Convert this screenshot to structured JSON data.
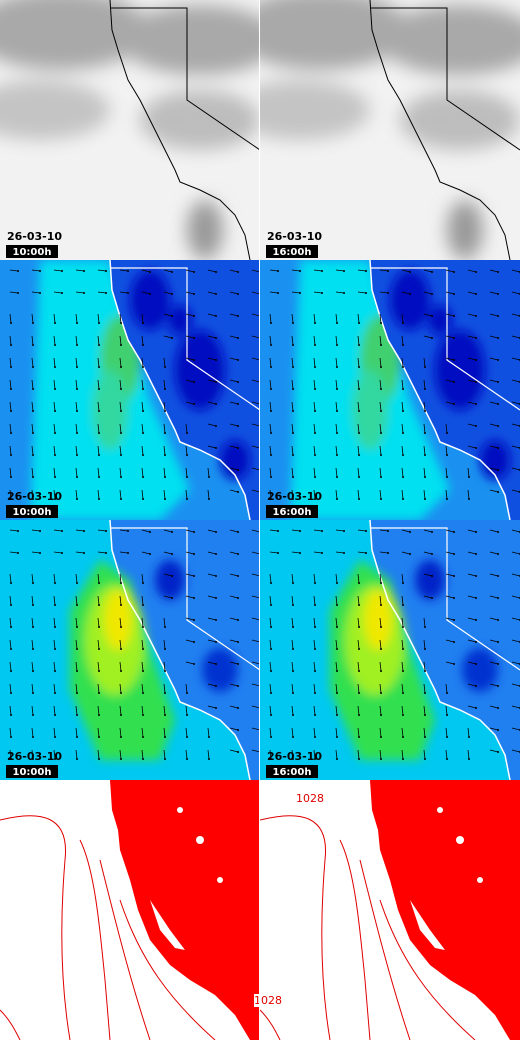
{
  "rows": [
    {
      "panels": [
        {
          "date": "26-03-10",
          "time": "10:00h"
        },
        {
          "date": "26-03-10",
          "time": "16:00h"
        }
      ]
    },
    {
      "panels": [
        {
          "date": "26-03-10",
          "time": "10:00h"
        },
        {
          "date": "26-03-10",
          "time": "16:00h"
        }
      ]
    },
    {
      "panels": [
        {
          "date": "26-03-10",
          "time": "10:00h"
        },
        {
          "date": "26-03-10",
          "time": "16:00h"
        }
      ]
    }
  ],
  "contour_labels": [
    "1028",
    "1028"
  ]
}
